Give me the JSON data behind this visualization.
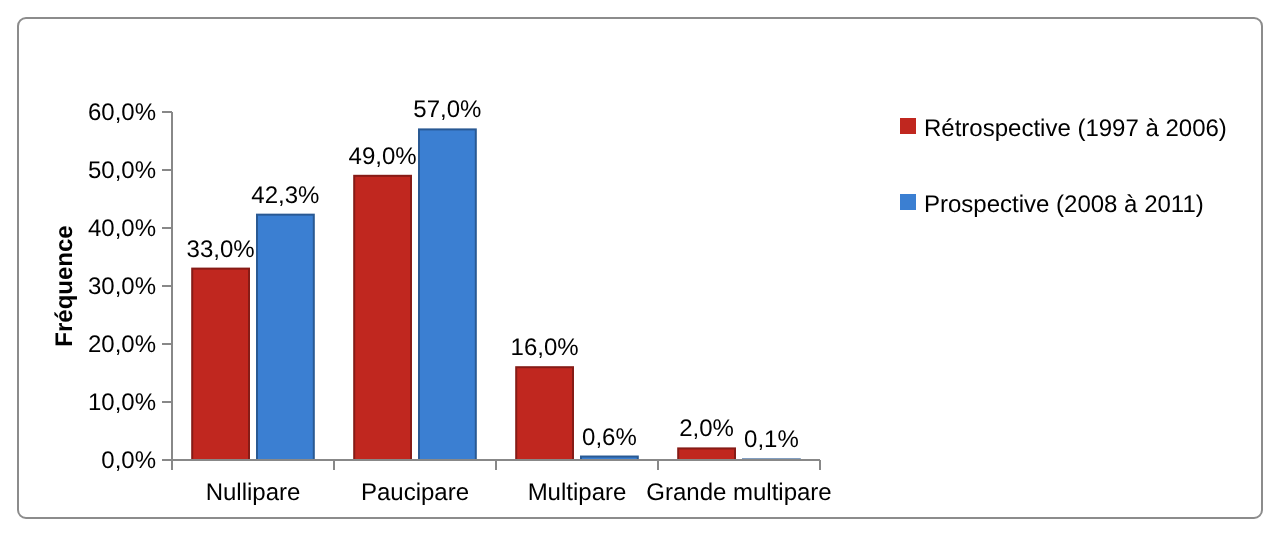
{
  "chart_data": {
    "type": "bar",
    "ylabel": "Fréquence",
    "categories": [
      "Nullipare",
      "Paucipare",
      "Multipare",
      "Grande multipare"
    ],
    "series": [
      {
        "name": "Rétrospective (1997 à 2006)",
        "color": "#c0271f",
        "values": [
          33.0,
          49.0,
          16.0,
          2.0
        ],
        "value_labels": [
          "33,0%",
          "49,0%",
          "16,0%",
          "2,0%"
        ]
      },
      {
        "name": "Prospective (2008 à 2011)",
        "color": "#3b7fd2",
        "values": [
          42.3,
          57.0,
          0.6,
          0.1
        ],
        "value_labels": [
          "42,3%",
          "57,0%",
          "0,6%",
          "0,1%"
        ]
      }
    ],
    "ylim": [
      0,
      60
    ],
    "yticks": [
      {
        "value": 0,
        "label": "0,0%"
      },
      {
        "value": 10,
        "label": "10,0%"
      },
      {
        "value": 20,
        "label": "20,0%"
      },
      {
        "value": 30,
        "label": "30,0%"
      },
      {
        "value": 40,
        "label": "40,0%"
      },
      {
        "value": 50,
        "label": "50,0%"
      },
      {
        "value": 60,
        "label": "60,0%"
      }
    ],
    "grid": false,
    "legend": "right"
  }
}
